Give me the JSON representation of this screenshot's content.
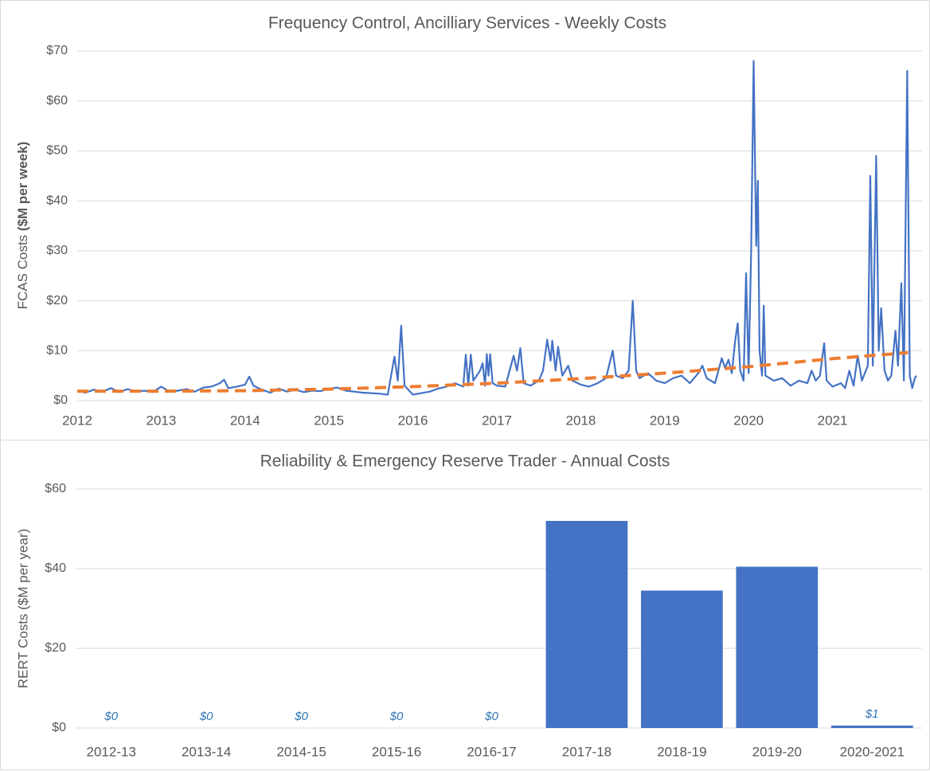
{
  "chart_data": [
    {
      "type": "line",
      "title": "Frequency Control, Ancilliary Services - Weekly Costs",
      "y_label": "FCAS Costs",
      "y_label_bold": "($M  per week)",
      "xlim": [
        2012,
        2022
      ],
      "xticks": [
        2012,
        2013,
        2014,
        2015,
        2016,
        2017,
        2018,
        2019,
        2020,
        2021
      ],
      "ylim": [
        0,
        70
      ],
      "yticks": [
        {
          "value": 0,
          "label": "$0"
        },
        {
          "value": 10,
          "label": "$10"
        },
        {
          "value": 20,
          "label": "$20"
        },
        {
          "value": 30,
          "label": "$30"
        },
        {
          "value": 40,
          "label": "$40"
        },
        {
          "value": 50,
          "label": "$50"
        },
        {
          "value": 60,
          "label": "$60"
        },
        {
          "value": 70,
          "label": "$70"
        }
      ],
      "grid": true,
      "series": [
        {
          "color": "#4472c4",
          "dashed": false,
          "x": [
            2012.0,
            2012.1,
            2012.2,
            2012.3,
            2012.4,
            2012.5,
            2012.6,
            2012.7,
            2012.8,
            2012.9,
            2013.0,
            2013.1,
            2013.2,
            2013.3,
            2013.4,
            2013.5,
            2013.6,
            2013.7,
            2013.75,
            2013.8,
            2013.9,
            2014.0,
            2014.05,
            2014.1,
            2014.2,
            2014.3,
            2014.4,
            2014.5,
            2014.6,
            2014.7,
            2014.8,
            2014.9,
            2015.0,
            2015.1,
            2015.2,
            2015.3,
            2015.4,
            2015.5,
            2015.6,
            2015.7,
            2015.78,
            2015.82,
            2015.86,
            2015.9,
            2016.0,
            2016.1,
            2016.2,
            2016.3,
            2016.4,
            2016.5,
            2016.6,
            2016.63,
            2016.66,
            2016.69,
            2016.72,
            2016.8,
            2016.83,
            2016.86,
            2016.88,
            2016.9,
            2016.92,
            2016.95,
            2017.0,
            2017.1,
            2017.2,
            2017.24,
            2017.28,
            2017.32,
            2017.4,
            2017.5,
            2017.55,
            2017.6,
            2017.64,
            2017.66,
            2017.7,
            2017.73,
            2017.78,
            2017.85,
            2017.9,
            2018.0,
            2018.1,
            2018.2,
            2018.3,
            2018.38,
            2018.42,
            2018.5,
            2018.57,
            2018.62,
            2018.66,
            2018.7,
            2018.8,
            2018.9,
            2019.0,
            2019.1,
            2019.2,
            2019.3,
            2019.4,
            2019.45,
            2019.5,
            2019.6,
            2019.68,
            2019.72,
            2019.76,
            2019.8,
            2019.84,
            2019.87,
            2019.9,
            2019.94,
            2019.97,
            2020.0,
            2020.03,
            2020.06,
            2020.09,
            2020.11,
            2020.13,
            2020.16,
            2020.18,
            2020.2,
            2020.3,
            2020.4,
            2020.5,
            2020.6,
            2020.7,
            2020.75,
            2020.8,
            2020.85,
            2020.9,
            2020.93,
            2021.0,
            2021.1,
            2021.15,
            2021.2,
            2021.25,
            2021.3,
            2021.35,
            2021.42,
            2021.45,
            2021.48,
            2021.52,
            2021.55,
            2021.58,
            2021.62,
            2021.66,
            2021.7,
            2021.75,
            2021.78,
            2021.82,
            2021.85,
            2021.89,
            2021.92,
            2021.95,
            2021.98,
            2022.0
          ],
          "values": [
            2,
            1.6,
            2.2,
            1.8,
            2.5,
            1.7,
            2.3,
            1.8,
            2.0,
            1.7,
            2.8,
            1.8,
            2.0,
            2.3,
            1.8,
            2.6,
            2.8,
            3.5,
            4.2,
            2.5,
            2.8,
            3.2,
            4.8,
            3.0,
            2.2,
            1.6,
            2.4,
            1.8,
            2.2,
            1.7,
            2.0,
            1.9,
            2.4,
            2.6,
            2.0,
            1.8,
            1.6,
            1.5,
            1.4,
            1.2,
            8.8,
            4,
            15,
            3,
            1.2,
            1.5,
            1.8,
            2.4,
            2.8,
            3.5,
            2.8,
            9.2,
            3,
            9.2,
            4,
            6,
            7.5,
            3,
            9.3,
            5,
            9.3,
            3.5,
            3,
            2.8,
            9,
            6,
            10.5,
            3.5,
            3,
            4,
            6,
            12.2,
            8,
            12,
            6,
            10.8,
            5,
            7,
            4,
            3.2,
            2.8,
            3.5,
            4.5,
            10,
            5,
            4.5,
            6,
            20,
            6,
            4.5,
            5.5,
            4,
            3.5,
            4.5,
            5,
            3.5,
            5.5,
            7,
            4.5,
            3.5,
            8.5,
            6.5,
            8.2,
            5.5,
            12,
            15.5,
            6,
            4,
            25.5,
            5.5,
            30,
            68,
            31,
            44,
            10,
            5,
            19,
            5,
            4,
            4.5,
            3,
            4,
            3.5,
            6,
            4,
            5,
            11.5,
            4,
            2.8,
            3.5,
            2.5,
            6,
            3,
            9,
            4,
            7,
            45,
            7,
            49,
            10,
            18.5,
            6,
            4,
            5,
            14,
            7,
            23.5,
            4,
            66,
            5,
            2.5,
            4.5,
            5
          ]
        },
        {
          "color": "#ed7d31",
          "dashed": true,
          "x": [
            2012,
            2013,
            2014,
            2015,
            2016,
            2017,
            2018,
            2019,
            2020,
            2021,
            2021.9
          ],
          "values": [
            1.9,
            1.9,
            2.0,
            2.3,
            2.8,
            3.5,
            4.4,
            5.5,
            6.8,
            8.4,
            9.6
          ]
        }
      ]
    },
    {
      "type": "bar",
      "title": "Reliability & Emergency Reserve Trader - Annual Costs",
      "y_label": "RERT Costs ($M per year)",
      "color": "#4472c4",
      "categories": [
        "2012-13",
        "2013-14",
        "2014-15",
        "2015-16",
        "2016-17",
        "2017-18",
        "2018-19",
        "2019-20",
        "2020-2021"
      ],
      "values": [
        0,
        0,
        0,
        0,
        0,
        52,
        34.5,
        40.5,
        0.6
      ],
      "value_labels": [
        "$0",
        "$0",
        "$0",
        "$0",
        "$0",
        null,
        null,
        null,
        "$1"
      ],
      "ylim": [
        0,
        60
      ],
      "yticks": [
        {
          "value": 0,
          "label": "$0"
        },
        {
          "value": 20,
          "label": "$20"
        },
        {
          "value": 40,
          "label": "$40"
        },
        {
          "value": 60,
          "label": "$60"
        }
      ],
      "grid": true
    }
  ]
}
